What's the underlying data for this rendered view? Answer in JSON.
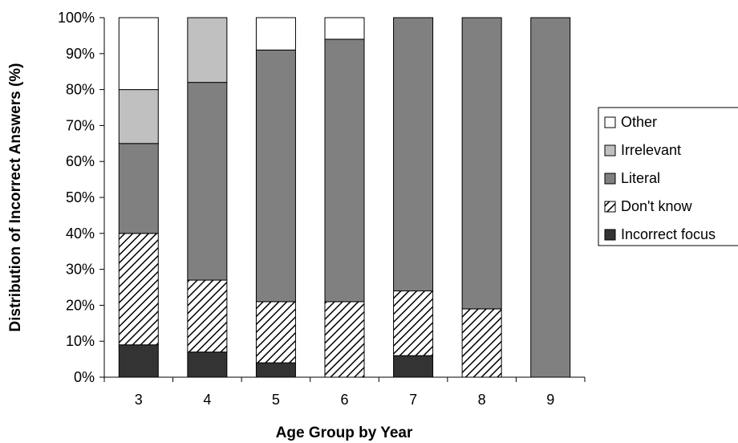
{
  "chart_data": {
    "type": "bar",
    "stacked": true,
    "categories": [
      "3",
      "4",
      "5",
      "6",
      "7",
      "8",
      "9"
    ],
    "xlabel": "Age Group by Year",
    "ylabel": "Distribution of Incorrect Answers (%)",
    "ylim": [
      0,
      100
    ],
    "yticks": [
      "0%",
      "10%",
      "20%",
      "30%",
      "40%",
      "50%",
      "60%",
      "70%",
      "80%",
      "90%",
      "100%"
    ],
    "grid": false,
    "legend_position": "right",
    "series": [
      {
        "name": "Incorrect focus",
        "fill": "solid-dark",
        "color": "#333333",
        "values": [
          9,
          7,
          4,
          0,
          6,
          0,
          0
        ]
      },
      {
        "name": "Don't know",
        "fill": "hatched",
        "color": "#ffffff",
        "values": [
          31,
          20,
          17,
          21,
          18,
          19,
          0
        ]
      },
      {
        "name": "Literal",
        "fill": "solid",
        "color": "#808080",
        "values": [
          25,
          55,
          70,
          73,
          76,
          81,
          100
        ]
      },
      {
        "name": "Irrelevant",
        "fill": "solid",
        "color": "#c0c0c0",
        "values": [
          15,
          18,
          0,
          0,
          0,
          0,
          0
        ]
      },
      {
        "name": "Other",
        "fill": "solid",
        "color": "#ffffff",
        "values": [
          20,
          0,
          9,
          6,
          0,
          0,
          0
        ]
      }
    ],
    "legend_order": [
      "Other",
      "Irrelevant",
      "Literal",
      "Don't know",
      "Incorrect focus"
    ]
  }
}
